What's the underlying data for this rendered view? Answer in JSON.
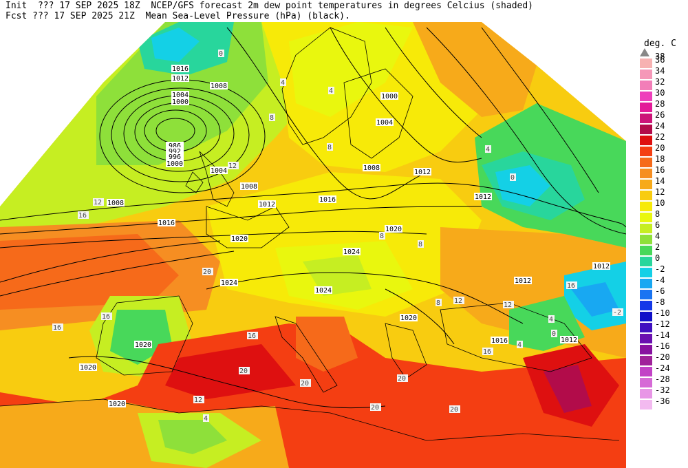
{
  "header": {
    "line1": "Init  ??? 17 SEP 2025 18Z  NCEP/GFS forecast 2m dew point temperatures in degrees Celcius (shaded)",
    "line2": "Fcst ??? 17 SEP 2025 21Z  Mean Sea-Level Pressure (hPa) (black)."
  },
  "legend": {
    "title": "deg. C",
    "top_label": "38",
    "entries": [
      {
        "label": "36",
        "color": "#f7b2b2"
      },
      {
        "label": "34",
        "color": "#f598b8"
      },
      {
        "label": "32",
        "color": "#f27eb8"
      },
      {
        "label": "30",
        "color": "#ee3fbb"
      },
      {
        "label": "28",
        "color": "#e31a98"
      },
      {
        "label": "26",
        "color": "#cc1478"
      },
      {
        "label": "24",
        "color": "#b20c4a"
      },
      {
        "label": "22",
        "color": "#de1010"
      },
      {
        "label": "20",
        "color": "#f43e12"
      },
      {
        "label": "18",
        "color": "#f66a1a"
      },
      {
        "label": "16",
        "color": "#f68e22"
      },
      {
        "label": "14",
        "color": "#f7aa1a"
      },
      {
        "label": "12",
        "color": "#f8cc10"
      },
      {
        "label": "10",
        "color": "#f7ea08"
      },
      {
        "label": "8",
        "color": "#e9f70e"
      },
      {
        "label": "6",
        "color": "#c6ee22"
      },
      {
        "label": "4",
        "color": "#8ee03a"
      },
      {
        "label": "2",
        "color": "#48d85a"
      },
      {
        "label": "0",
        "color": "#28d69c"
      },
      {
        "label": "-2",
        "color": "#14d0e6"
      },
      {
        "label": "-4",
        "color": "#18a8f2"
      },
      {
        "label": "-6",
        "color": "#1a74f2"
      },
      {
        "label": "-8",
        "color": "#1438e8"
      },
      {
        "label": "-10",
        "color": "#1010c8"
      },
      {
        "label": "-12",
        "color": "#4010c0"
      },
      {
        "label": "-14",
        "color": "#6a10b0"
      },
      {
        "label": "-16",
        "color": "#8812a0"
      },
      {
        "label": "-20",
        "color": "#a0229a"
      },
      {
        "label": "-24",
        "color": "#c242c6"
      },
      {
        "label": "-28",
        "color": "#d66ad6"
      },
      {
        "label": "-32",
        "color": "#e896e6"
      },
      {
        "label": "-36",
        "color": "#f3baf0"
      }
    ]
  },
  "isobar_labels": [
    "1016",
    "1012",
    "1008",
    "1004",
    "1000",
    "986",
    "992",
    "996",
    "1000",
    "1004",
    "1008",
    "1012",
    "1016",
    "1020",
    "1024",
    "1024",
    "1024",
    "1020",
    "1020",
    "1020",
    "1020",
    "1016",
    "1012",
    "1012",
    "1012",
    "1008",
    "1004",
    "1000",
    "1012",
    "1016",
    "1012",
    "1020",
    "1008"
  ],
  "dewpoint_labels": [
    "0",
    "4",
    "4",
    "8",
    "8",
    "12",
    "12",
    "16",
    "16",
    "16",
    "16",
    "20",
    "20",
    "20",
    "20",
    "20",
    "20",
    "12",
    "12",
    "0",
    "4",
    "4",
    "-2",
    "8",
    "8",
    "12",
    "16",
    "16",
    "4",
    "4",
    "0",
    "8"
  ]
}
